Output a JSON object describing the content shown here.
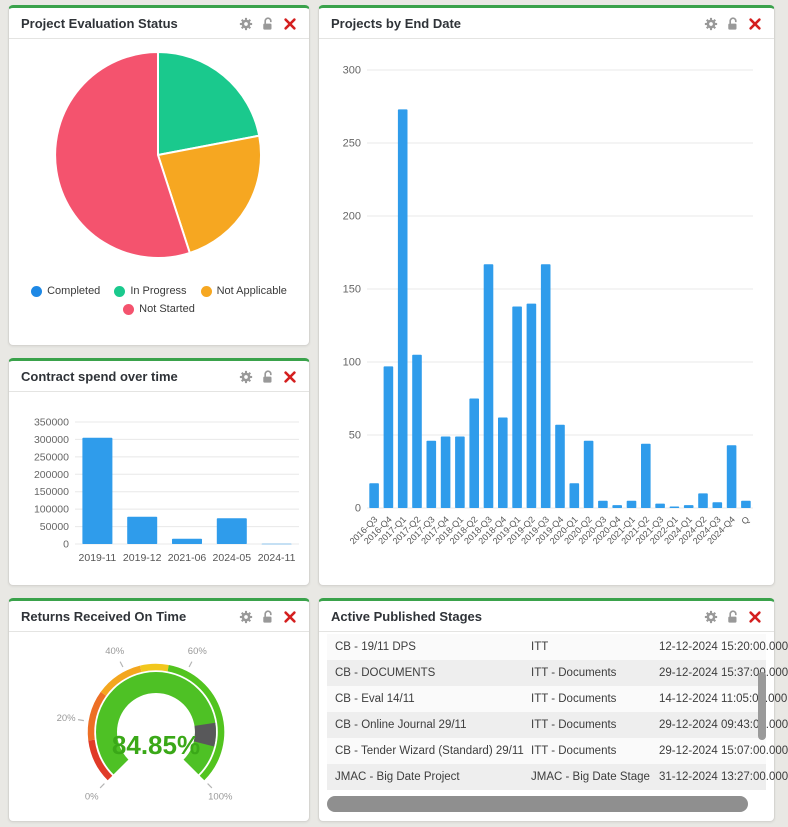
{
  "theme": {
    "page_bg": "#e9e8e4",
    "widget_bg": "#ffffff",
    "widget_accent_green": "#3aa24b",
    "title_color": "#2f3338",
    "icon_gray": "#999999",
    "close_red": "#d41f1f",
    "bar_blue": "#2f9ceb",
    "grid_color": "#e8e8e8",
    "axis_text": "#666666",
    "scrollbar_gray": "#8f8f8f"
  },
  "widget_controls": {
    "icons": [
      "gear-icon",
      "unlock-icon",
      "close-icon"
    ]
  },
  "widgets": {
    "evaluation": {
      "title": "Project Evaluation Status",
      "chart_data": {
        "type": "pie",
        "legend_position": "bottom",
        "slices": [
          {
            "label": "Completed",
            "value": 0,
            "color": "#1e88e5"
          },
          {
            "label": "In Progress",
            "value": 22,
            "color": "#1ac98d"
          },
          {
            "label": "Not Applicable",
            "value": 23,
            "color": "#f6a721"
          },
          {
            "label": "Not Started",
            "value": 55,
            "color": "#f4536e"
          }
        ]
      }
    },
    "end_date": {
      "title": "Projects by End Date",
      "chart_data": {
        "type": "bar",
        "categories": [
          "2016-Q3",
          "2016-Q4",
          "2017-Q1",
          "2017-Q2",
          "2017-Q3",
          "2017-Q4",
          "2018-Q1",
          "2018-Q2",
          "2018-Q3",
          "2018-Q4",
          "2019-Q1",
          "2019-Q2",
          "2019-Q3",
          "2019-Q4",
          "2020-Q1",
          "2020-Q2",
          "2020-Q3",
          "2020-Q4",
          "2021-Q1",
          "2021-Q2",
          "2021-Q3",
          "2022-Q1",
          "2024-Q1",
          "2024-Q2",
          "2024-Q3",
          "2024-Q4",
          "Q"
        ],
        "values": [
          17,
          97,
          273,
          105,
          46,
          49,
          49,
          75,
          167,
          62,
          138,
          140,
          167,
          57,
          17,
          46,
          5,
          2,
          5,
          44,
          3,
          1,
          2,
          10,
          4,
          43,
          5
        ],
        "ylim": [
          0,
          300
        ],
        "yticks": [
          0,
          50,
          100,
          150,
          200,
          250,
          300
        ],
        "bar_color": "#2f9ceb",
        "grid": true,
        "xlabel": "",
        "ylabel": ""
      }
    },
    "spend": {
      "title": "Contract spend over time",
      "chart_data": {
        "type": "bar",
        "categories": [
          "2019-11",
          "2019-12",
          "2021-06",
          "2024-05",
          "2024-11"
        ],
        "values": [
          305000,
          78000,
          15000,
          74000,
          1000
        ],
        "ylim": [
          0,
          350000
        ],
        "yticks": [
          0,
          50000,
          100000,
          150000,
          200000,
          250000,
          300000,
          350000
        ],
        "bar_color": "#2f9ceb",
        "grid": true,
        "xlabel": "",
        "ylabel": ""
      }
    },
    "returns": {
      "title": "Returns Received On Time",
      "chart_data": {
        "type": "gauge",
        "value": 84.85,
        "value_label": "84.85%",
        "min": 0,
        "max": 100,
        "start_angle": 225,
        "sweep_angle": 270,
        "tick_values": [
          0,
          20,
          40,
          60,
          100
        ],
        "tick_labels": [
          "0%",
          "20%",
          "40%",
          "60%",
          "100%"
        ],
        "ring_segments": [
          {
            "from": 0,
            "to": 14,
            "color": "#e03a28"
          },
          {
            "from": 14,
            "to": 30,
            "color": "#ed6f25"
          },
          {
            "from": 30,
            "to": 45,
            "color": "#f3a61e"
          },
          {
            "from": 45,
            "to": 54,
            "color": "#f2c71d"
          },
          {
            "from": 54,
            "to": 100,
            "color": "#52c41f"
          }
        ],
        "arc_color": "#4ec125",
        "marker": {
          "from": 80,
          "to": 88.5,
          "color": "#58585a"
        },
        "value_color": "#3aa818"
      }
    },
    "stages": {
      "title": "Active Published Stages",
      "table": {
        "columns": [
          "project",
          "stage",
          "published"
        ],
        "rows": [
          {
            "project": "CB - 19/11 DPS",
            "stage": "ITT",
            "published": "12-12-2024 15:20:00.000"
          },
          {
            "project": "CB - DOCUMENTS",
            "stage": "ITT - Documents",
            "published": "29-12-2024 15:37:00.000"
          },
          {
            "project": "CB - Eval 14/11",
            "stage": "ITT - Documents",
            "published": "14-12-2024 11:05:00.000"
          },
          {
            "project": "CB - Online Journal 29/11",
            "stage": "ITT - Documents",
            "published": "29-12-2024 09:43:00.000"
          },
          {
            "project": "CB - Tender Wizard (Standard) 29/11",
            "stage": "ITT - Documents",
            "published": "29-12-2024 15:07:00.000"
          },
          {
            "project": "JMAC - Big Date Project",
            "stage": "JMAC - Big Date Stage",
            "published": "31-12-2024 13:27:00.000"
          }
        ]
      }
    }
  }
}
